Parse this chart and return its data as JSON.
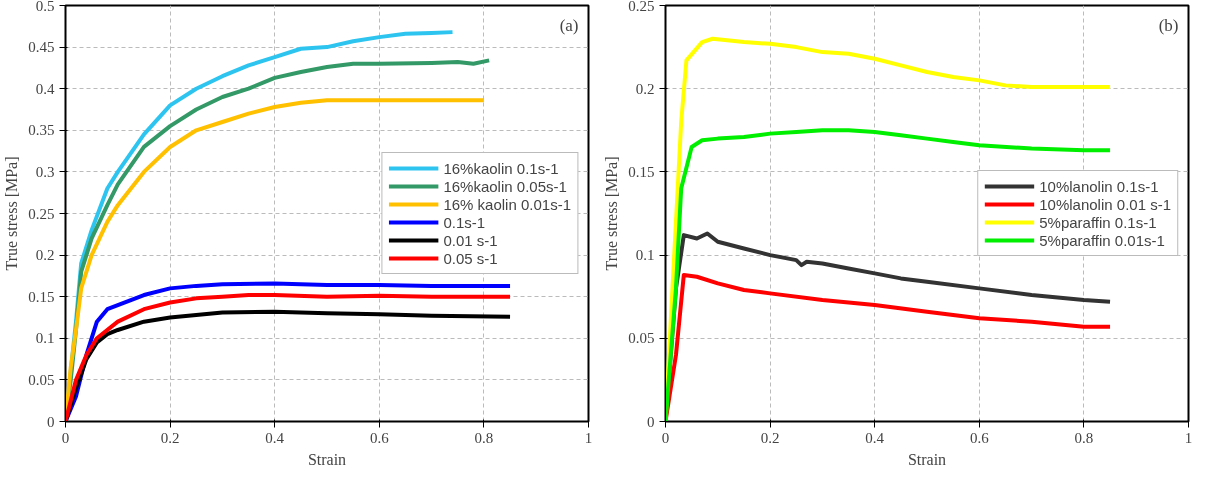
{
  "chart_data": [
    {
      "type": "line",
      "xlabel": "Strain",
      "ylabel": "True stress [MPa]",
      "annotations": [
        "(a)"
      ],
      "xlim": [
        0,
        1
      ],
      "ylim": [
        0,
        0.5
      ],
      "xticks": [
        0,
        0.2,
        0.4,
        0.6,
        0.8,
        1
      ],
      "yticks": [
        0,
        0.05,
        0.1,
        0.15,
        0.2,
        0.25,
        0.3,
        0.35,
        0.4,
        0.45,
        0.5
      ],
      "grid": true,
      "legend": "right",
      "marker": "none",
      "line_style": "solid",
      "series": [
        {
          "name": "16%kaolin 0.1s-1",
          "color": "#2ec4f0",
          "x": [
            0,
            0.01,
            0.02,
            0.03,
            0.05,
            0.08,
            0.1,
            0.15,
            0.2,
            0.25,
            0.3,
            0.35,
            0.4,
            0.45,
            0.5,
            0.55,
            0.6,
            0.65,
            0.7,
            0.74
          ],
          "values": [
            0,
            0.06,
            0.12,
            0.19,
            0.23,
            0.28,
            0.3,
            0.345,
            0.38,
            0.4,
            0.415,
            0.428,
            0.438,
            0.448,
            0.45,
            0.457,
            0.462,
            0.466,
            0.467,
            0.468
          ]
        },
        {
          "name": "16%kaolin 0.05s-1",
          "color": "#339966",
          "x": [
            0,
            0.01,
            0.02,
            0.03,
            0.05,
            0.08,
            0.1,
            0.15,
            0.2,
            0.25,
            0.3,
            0.35,
            0.4,
            0.45,
            0.5,
            0.55,
            0.6,
            0.7,
            0.75,
            0.78,
            0.81
          ],
          "values": [
            0,
            0.05,
            0.11,
            0.18,
            0.22,
            0.26,
            0.285,
            0.33,
            0.355,
            0.375,
            0.39,
            0.4,
            0.413,
            0.42,
            0.426,
            0.43,
            0.43,
            0.431,
            0.432,
            0.43,
            0.434
          ]
        },
        {
          "name": "16% kaolin 0.01s-1",
          "color": "#ffc000",
          "x": [
            0,
            0.01,
            0.02,
            0.03,
            0.05,
            0.08,
            0.1,
            0.15,
            0.2,
            0.25,
            0.3,
            0.35,
            0.4,
            0.45,
            0.5,
            0.6,
            0.7,
            0.8
          ],
          "values": [
            0,
            0.065,
            0.11,
            0.16,
            0.2,
            0.24,
            0.26,
            0.3,
            0.33,
            0.35,
            0.36,
            0.37,
            0.378,
            0.383,
            0.386,
            0.386,
            0.386,
            0.386
          ]
        },
        {
          "name": "0.1s-1",
          "color": "#0000ff",
          "x": [
            0,
            0.02,
            0.04,
            0.06,
            0.08,
            0.1,
            0.15,
            0.2,
            0.25,
            0.3,
            0.4,
            0.5,
            0.6,
            0.7,
            0.85
          ],
          "values": [
            0,
            0.03,
            0.08,
            0.12,
            0.135,
            0.14,
            0.152,
            0.16,
            0.163,
            0.165,
            0.166,
            0.164,
            0.164,
            0.163,
            0.163
          ]
        },
        {
          "name": "0.01 s-1",
          "color": "#000000",
          "x": [
            0,
            0.02,
            0.04,
            0.06,
            0.08,
            0.1,
            0.15,
            0.2,
            0.3,
            0.4,
            0.5,
            0.6,
            0.7,
            0.85
          ],
          "values": [
            0,
            0.04,
            0.075,
            0.095,
            0.105,
            0.11,
            0.12,
            0.125,
            0.131,
            0.132,
            0.13,
            0.129,
            0.127,
            0.126
          ]
        },
        {
          "name": "0.05 s-1",
          "color": "#ff0000",
          "x": [
            0,
            0.02,
            0.04,
            0.06,
            0.1,
            0.15,
            0.2,
            0.25,
            0.3,
            0.35,
            0.4,
            0.5,
            0.6,
            0.7,
            0.85
          ],
          "values": [
            0,
            0.05,
            0.08,
            0.1,
            0.12,
            0.135,
            0.143,
            0.148,
            0.15,
            0.152,
            0.152,
            0.15,
            0.151,
            0.15,
            0.15
          ]
        }
      ]
    },
    {
      "type": "line",
      "xlabel": "Strain",
      "ylabel": "True stress [MPa]",
      "annotations": [
        "(b)"
      ],
      "xlim": [
        0,
        1
      ],
      "ylim": [
        0,
        0.25
      ],
      "xticks": [
        0,
        0.2,
        0.4,
        0.6,
        0.8,
        1
      ],
      "yticks": [
        0,
        0.05,
        0.1,
        0.15,
        0.2,
        0.25
      ],
      "grid": true,
      "legend": "right",
      "marker": "none",
      "line_style": "solid",
      "series": [
        {
          "name": "10%lanolin 0.1s-1",
          "color": "#333333",
          "x": [
            0,
            0.01,
            0.02,
            0.035,
            0.06,
            0.08,
            0.1,
            0.15,
            0.2,
            0.25,
            0.26,
            0.27,
            0.3,
            0.35,
            0.4,
            0.45,
            0.5,
            0.6,
            0.7,
            0.8,
            0.85
          ],
          "values": [
            0,
            0.04,
            0.08,
            0.112,
            0.11,
            0.113,
            0.108,
            0.104,
            0.1,
            0.097,
            0.094,
            0.096,
            0.095,
            0.092,
            0.089,
            0.086,
            0.084,
            0.08,
            0.076,
            0.073,
            0.072
          ]
        },
        {
          "name": "10%lanolin 0.01 s-1",
          "color": "#ff0000",
          "x": [
            0,
            0.02,
            0.035,
            0.06,
            0.1,
            0.15,
            0.2,
            0.3,
            0.4,
            0.5,
            0.6,
            0.7,
            0.8,
            0.85
          ],
          "values": [
            0,
            0.04,
            0.088,
            0.087,
            0.083,
            0.079,
            0.077,
            0.073,
            0.07,
            0.066,
            0.062,
            0.06,
            0.057,
            0.057
          ]
        },
        {
          "name": "5%paraffin 0.1s-1",
          "color": "#ffff00",
          "x": [
            0,
            0.01,
            0.02,
            0.03,
            0.04,
            0.07,
            0.09,
            0.15,
            0.2,
            0.25,
            0.3,
            0.35,
            0.4,
            0.45,
            0.5,
            0.55,
            0.6,
            0.65,
            0.7,
            0.8,
            0.85
          ],
          "values": [
            0,
            0.06,
            0.12,
            0.18,
            0.217,
            0.228,
            0.23,
            0.228,
            0.227,
            0.225,
            0.222,
            0.221,
            0.218,
            0.214,
            0.21,
            0.207,
            0.205,
            0.202,
            0.201,
            0.201,
            0.201
          ]
        },
        {
          "name": "5%paraffin 0.01s-1",
          "color": "#00ee00",
          "x": [
            0,
            0.01,
            0.02,
            0.03,
            0.05,
            0.07,
            0.1,
            0.15,
            0.2,
            0.25,
            0.3,
            0.35,
            0.4,
            0.45,
            0.5,
            0.55,
            0.6,
            0.7,
            0.8,
            0.85
          ],
          "values": [
            0,
            0.04,
            0.08,
            0.14,
            0.165,
            0.169,
            0.17,
            0.171,
            0.173,
            0.174,
            0.175,
            0.175,
            0.174,
            0.172,
            0.17,
            0.168,
            0.166,
            0.164,
            0.163,
            0.163
          ]
        }
      ]
    }
  ]
}
